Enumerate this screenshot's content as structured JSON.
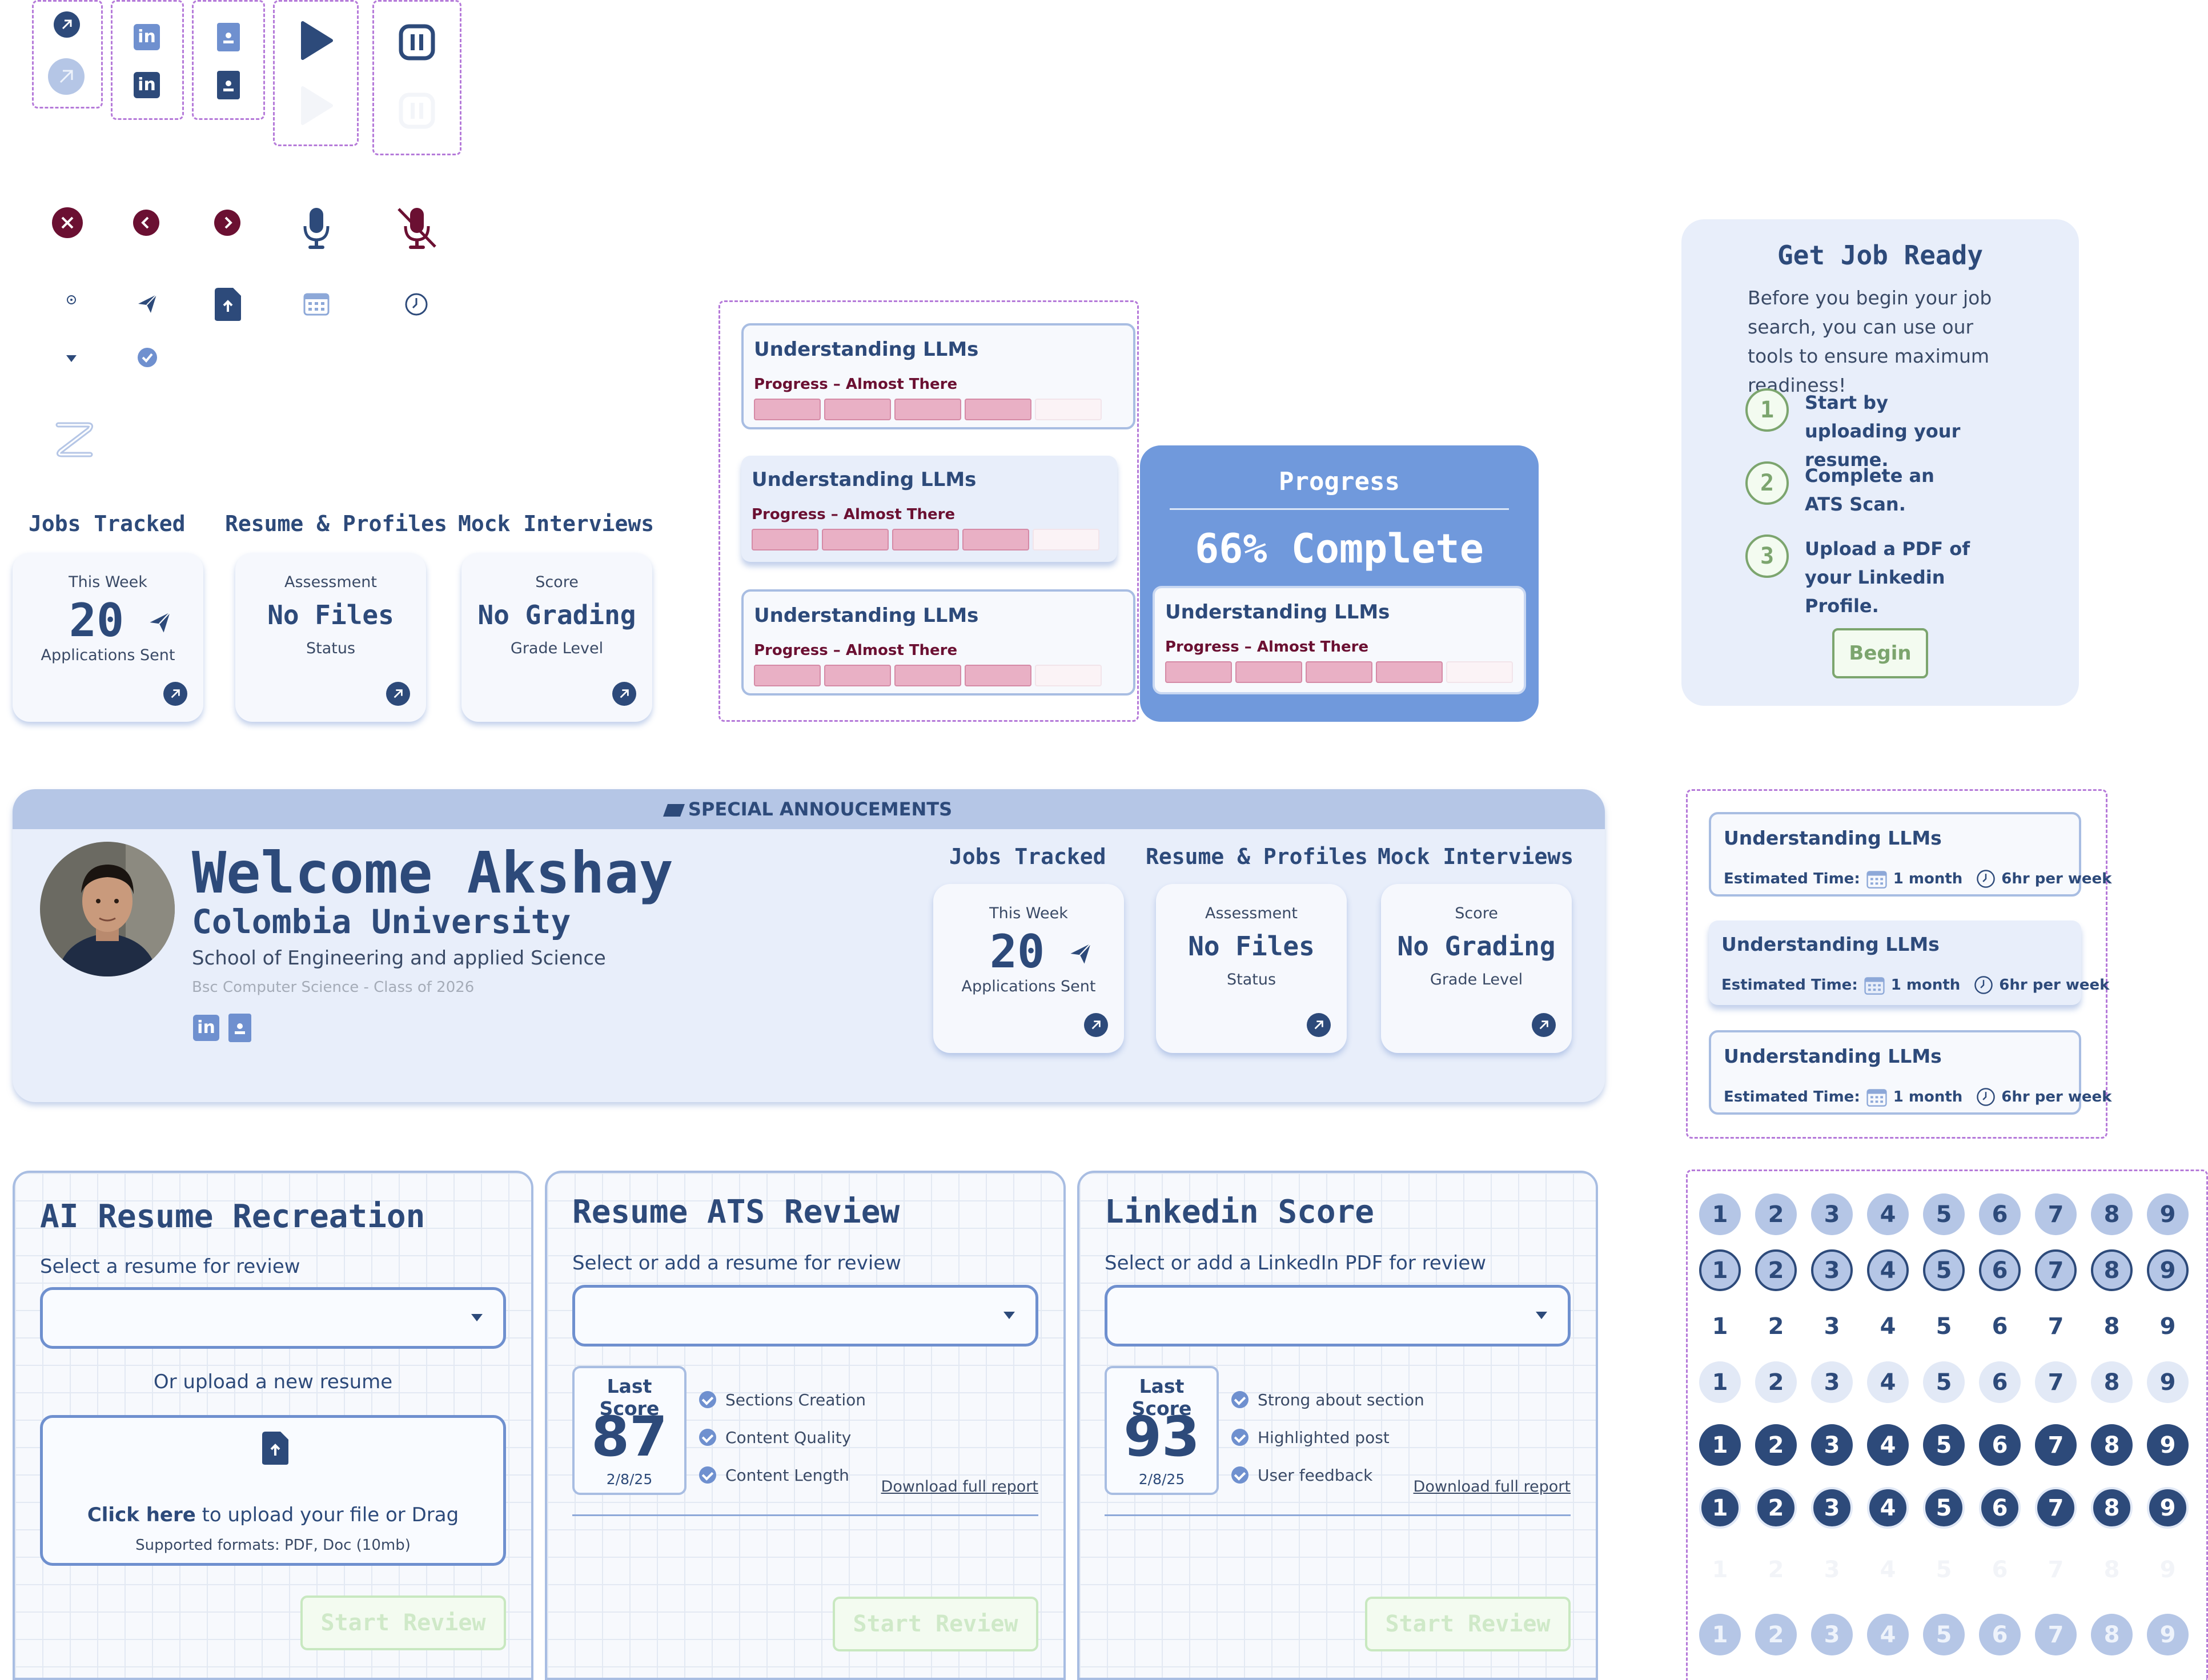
{
  "stats_panel_top": {
    "jobs_heading": "Jobs Tracked",
    "resume_heading": "Resume & Profiles",
    "mock_heading": "Mock Interviews",
    "jobs": {
      "label": "This Week",
      "value": "20",
      "sub": "Applications Sent"
    },
    "resume": {
      "label": "Assessment",
      "value": "No Files",
      "sub": "Status"
    },
    "mock": {
      "label": "Score",
      "value": "No Grading",
      "sub": "Grade Level"
    }
  },
  "course_cards": [
    {
      "title": "Understanding LLMs",
      "progress_text": "Progress – Almost There",
      "progress": 0.8
    },
    {
      "title": "Understanding LLMs",
      "progress_text": "Progress – Almost There",
      "progress": 0.8
    },
    {
      "title": "Understanding LLMs",
      "progress_text": "Progress – Almost There",
      "progress": 0.8
    }
  ],
  "progress_panel": {
    "title": "Progress",
    "complete": "66% Complete",
    "course": {
      "title": "Understanding LLMs",
      "progress_text": "Progress – Almost There",
      "progress": 0.8
    }
  },
  "job_ready": {
    "title": "Get Job Ready",
    "description": "Before you begin your job search, you can use our tools to ensure maximum readiness!",
    "steps": [
      {
        "num": "1",
        "text": "Start by uploading your resume."
      },
      {
        "num": "2",
        "text": "Complete an ATS Scan."
      },
      {
        "num": "3",
        "text": "Upload a PDF of your Linkedin Profile."
      }
    ],
    "button": "Begin"
  },
  "welcome": {
    "announcement": "SPECIAL ANNOUCEMENTS",
    "greeting": "Welcome Akshay",
    "university": "Colombia University",
    "school": "School of Engineering and applied Science",
    "degree": "Bsc Computer Science - Class of 2026",
    "jobs_heading": "Jobs Tracked",
    "resume_heading": "Resume & Profiles",
    "mock_heading": "Mock Interviews",
    "jobs": {
      "label": "This Week",
      "value": "20",
      "sub": "Applications Sent"
    },
    "resume": {
      "label": "Assessment",
      "value": "No Files",
      "sub": "Status"
    },
    "mock": {
      "label": "Score",
      "value": "No Grading",
      "sub": "Grade Level"
    }
  },
  "estimate_cards": [
    {
      "title": "Understanding LLMs",
      "est_label": "Estimated Time:",
      "duration": "1 month",
      "hours": "6hr per week"
    },
    {
      "title": "Understanding LLMs",
      "est_label": "Estimated Time:",
      "duration": "1 month",
      "hours": "6hr per week"
    },
    {
      "title": "Understanding LLMs",
      "est_label": "Estimated Time:",
      "duration": "1 month",
      "hours": "6hr per week"
    }
  ],
  "number_rows": [
    [
      "1",
      "2",
      "3",
      "4",
      "5",
      "6",
      "7",
      "8",
      "9"
    ]
  ],
  "tools": {
    "ai_resume": {
      "title": "AI Resume Recreation",
      "select_label": "Select a resume for review",
      "or_upload": "Or upload a new resume",
      "upload_click": "Click here",
      "upload_rest": " to upload your file or Drag",
      "formats": "Supported formats: PDF, Doc (10mb)",
      "button": "Start Review"
    },
    "ats": {
      "title": "Resume ATS Review",
      "select_label": "Select or add a resume for review",
      "last_score_label": "Last Score",
      "score": "87",
      "date": "2/8/25",
      "checks": [
        "Sections Creation",
        "Content Quality",
        "Content Length"
      ],
      "download": "Download full report",
      "button": "Start Review"
    },
    "linkedin": {
      "title": "Linkedin Score",
      "select_label": "Select or add a LinkedIn PDF for review",
      "last_score_label": "Last Score",
      "score": "93",
      "date": "2/8/25",
      "checks": [
        "Strong about section",
        "Highlighted post",
        "User feedback"
      ],
      "download": "Download full report",
      "button": "Start Review"
    }
  },
  "colors": {
    "navy": "#2d4a7a",
    "accent": "#6f90cf",
    "maroon": "#6b1032",
    "pink": "#e9b0c5",
    "green": "#7ca56e"
  }
}
